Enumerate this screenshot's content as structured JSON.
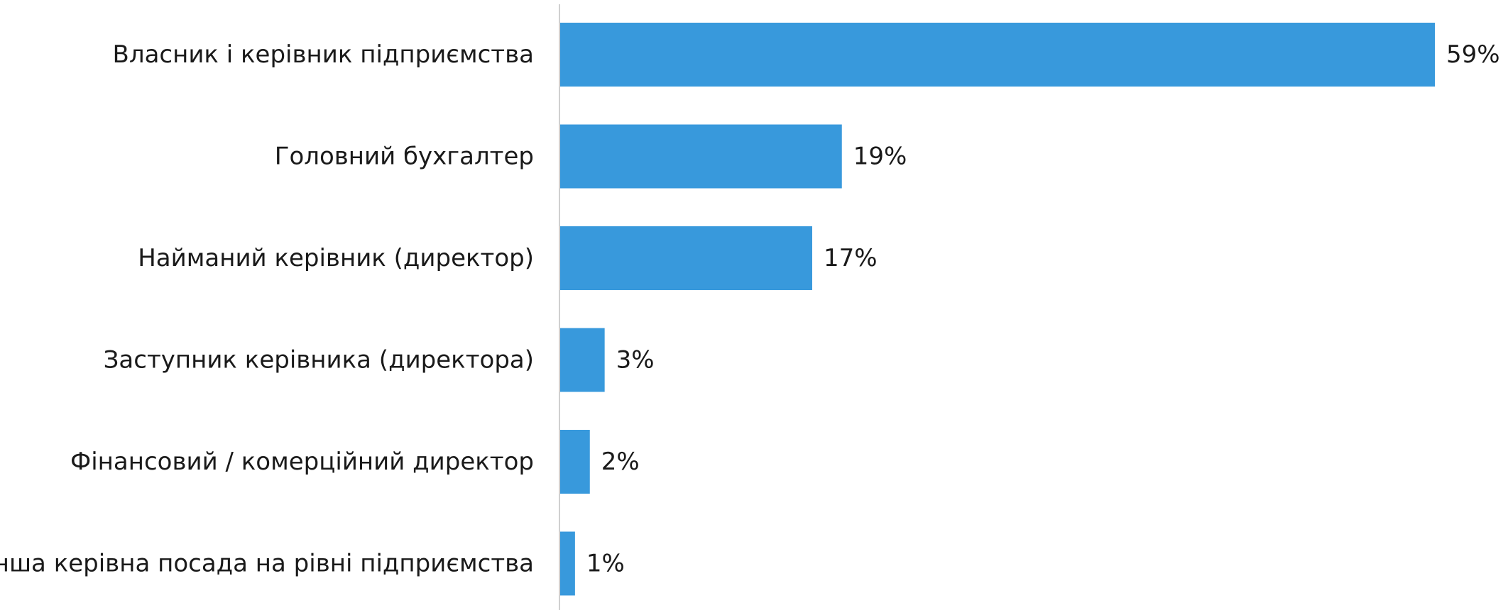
{
  "chart_data": {
    "type": "bar",
    "orientation": "horizontal",
    "categories": [
      "Власник і керівник підприємства",
      "Головний бухгалтер",
      "Найманий керівник (директор)",
      "Заступник керівника (директора)",
      "Фінансовий / комерційний директор",
      "Інша керівна посада на рівні підприємства"
    ],
    "values": [
      59,
      19,
      17,
      3,
      2,
      1
    ],
    "value_labels": [
      "59%",
      "19%",
      "17%",
      "3%",
      "2%",
      "1%"
    ],
    "title": "",
    "xlabel": "",
    "ylabel": "",
    "xlim": [
      0,
      59
    ],
    "grid": false,
    "legend": "none",
    "colors": {
      "bar": "#3899DC",
      "axis": "#D0D0D0",
      "text": "#1A1A1A"
    }
  }
}
